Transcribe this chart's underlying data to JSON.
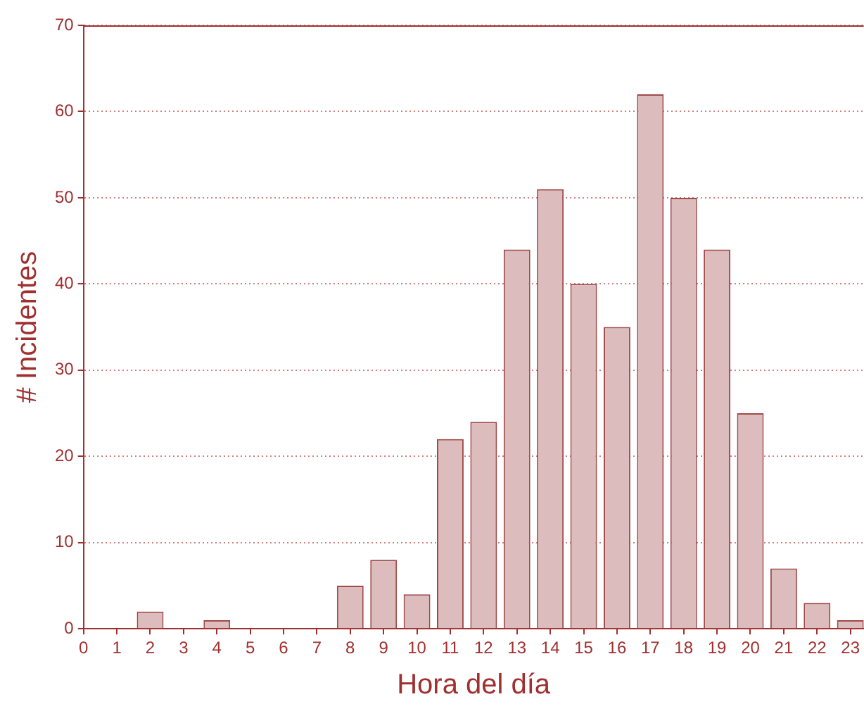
{
  "chart_data": {
    "type": "bar",
    "xlabel": "Hora del día",
    "ylabel": "# Incidentes",
    "x": [
      0,
      1,
      2,
      3,
      4,
      5,
      6,
      7,
      8,
      9,
      10,
      11,
      12,
      13,
      14,
      15,
      16,
      17,
      18,
      19,
      20,
      21,
      22,
      23
    ],
    "values": [
      0,
      0,
      2,
      0,
      1,
      0,
      0,
      0,
      5,
      8,
      4,
      22,
      24,
      44,
      51,
      40,
      35,
      62,
      50,
      44,
      25,
      7,
      3,
      1
    ],
    "color": "#dcbcbc",
    "xlim": [
      0,
      23.4
    ],
    "xticks": [
      0,
      1,
      2,
      3,
      4,
      5,
      6,
      7,
      8,
      9,
      10,
      11,
      12,
      13,
      14,
      15,
      16,
      17,
      18,
      19,
      20,
      21,
      22,
      23
    ],
    "ylim": [
      0,
      70
    ],
    "yticks": [
      0,
      10,
      20,
      30,
      40,
      50,
      60,
      70
    ],
    "grid": "y",
    "legend": false
  }
}
